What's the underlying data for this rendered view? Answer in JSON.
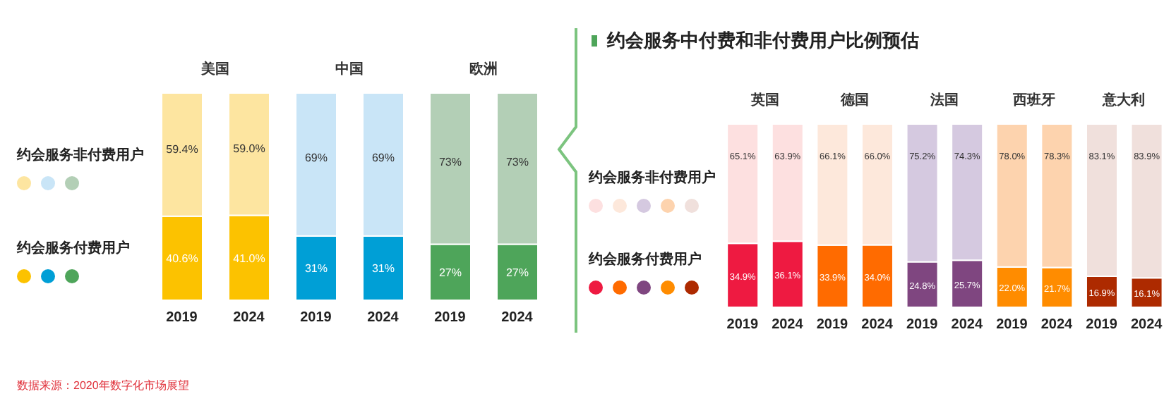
{
  "chart_data": [
    {
      "type": "bar",
      "stacked": true,
      "categories": [
        "2019",
        "2024",
        "2019",
        "2024",
        "2019",
        "2024"
      ],
      "ylim": [
        0,
        100
      ],
      "tick_labels": "x",
      "legend": "left",
      "series": [
        {
          "name": "约会服务付费用户",
          "colors": [
            "#fcc200",
            "#fcc200",
            "#009fd6",
            "#009fd6",
            "#4ea55a",
            "#4ea55a"
          ],
          "values": [
            40.6,
            41.0,
            31,
            31,
            27,
            27
          ],
          "value_labels": [
            "40.6%",
            "41.0%",
            "31%",
            "31%",
            "27%",
            "27%"
          ]
        },
        {
          "name": "约会服务非付费用户",
          "colors": [
            "#fde5a0",
            "#fde5a0",
            "#c9e5f7",
            "#c9e5f7",
            "#b3cfb6",
            "#b3cfb6"
          ],
          "values": [
            59.4,
            59.0,
            69,
            69,
            73,
            73
          ],
          "value_labels": [
            "59.4%",
            "59.0%",
            "69%",
            "69%",
            "73%",
            "73%"
          ]
        }
      ],
      "annotations": [
        "美国",
        "中国",
        "欧洲",
        "数据来源：2020年数字化市场展望"
      ]
    },
    {
      "type": "bar",
      "stacked": true,
      "title": "约会服务中付费和非付费用户比例预估",
      "categories": [
        "2019",
        "2024",
        "2019",
        "2024",
        "2019",
        "2024",
        "2019",
        "2024",
        "2019",
        "2024"
      ],
      "ylim": [
        0,
        100
      ],
      "tick_labels": "x",
      "legend": "left",
      "series": [
        {
          "name": "约会服务付费用户",
          "colors": [
            "#ee1a41",
            "#ee1a41",
            "#ff6b00",
            "#ff6b00",
            "#7f4680",
            "#7f4680",
            "#ff8c00",
            "#ff8c00",
            "#ad2a00",
            "#ad2a00"
          ],
          "values": [
            34.9,
            36.1,
            33.9,
            34.0,
            24.8,
            25.7,
            22.0,
            21.7,
            16.9,
            16.1
          ],
          "value_labels": [
            "34.9%",
            "36.1%",
            "33.9%",
            "34.0%",
            "24.8%",
            "25.7%",
            "22.0%",
            "21.7%",
            "16.9%",
            "16.1%"
          ]
        },
        {
          "name": "约会服务非付费用户",
          "colors": [
            "#fde0e0",
            "#fde0e0",
            "#fde8db",
            "#fde8db",
            "#d5c9e0",
            "#d5c9e0",
            "#fdd3ae",
            "#fdd3ae",
            "#f0e0dc",
            "#f0e0dc"
          ],
          "values": [
            65.1,
            63.9,
            66.1,
            66.0,
            75.2,
            74.3,
            78.0,
            78.3,
            83.1,
            83.9
          ],
          "value_labels": [
            "65.1%",
            "63.9%",
            "66.1%",
            "66.0%",
            "75.2%",
            "74.3%",
            "78.0%",
            "78.3%",
            "83.1%",
            "83.9%"
          ]
        }
      ],
      "annotations": [
        "英国",
        "德国",
        "法国",
        "西班牙",
        "意大利"
      ]
    }
  ]
}
